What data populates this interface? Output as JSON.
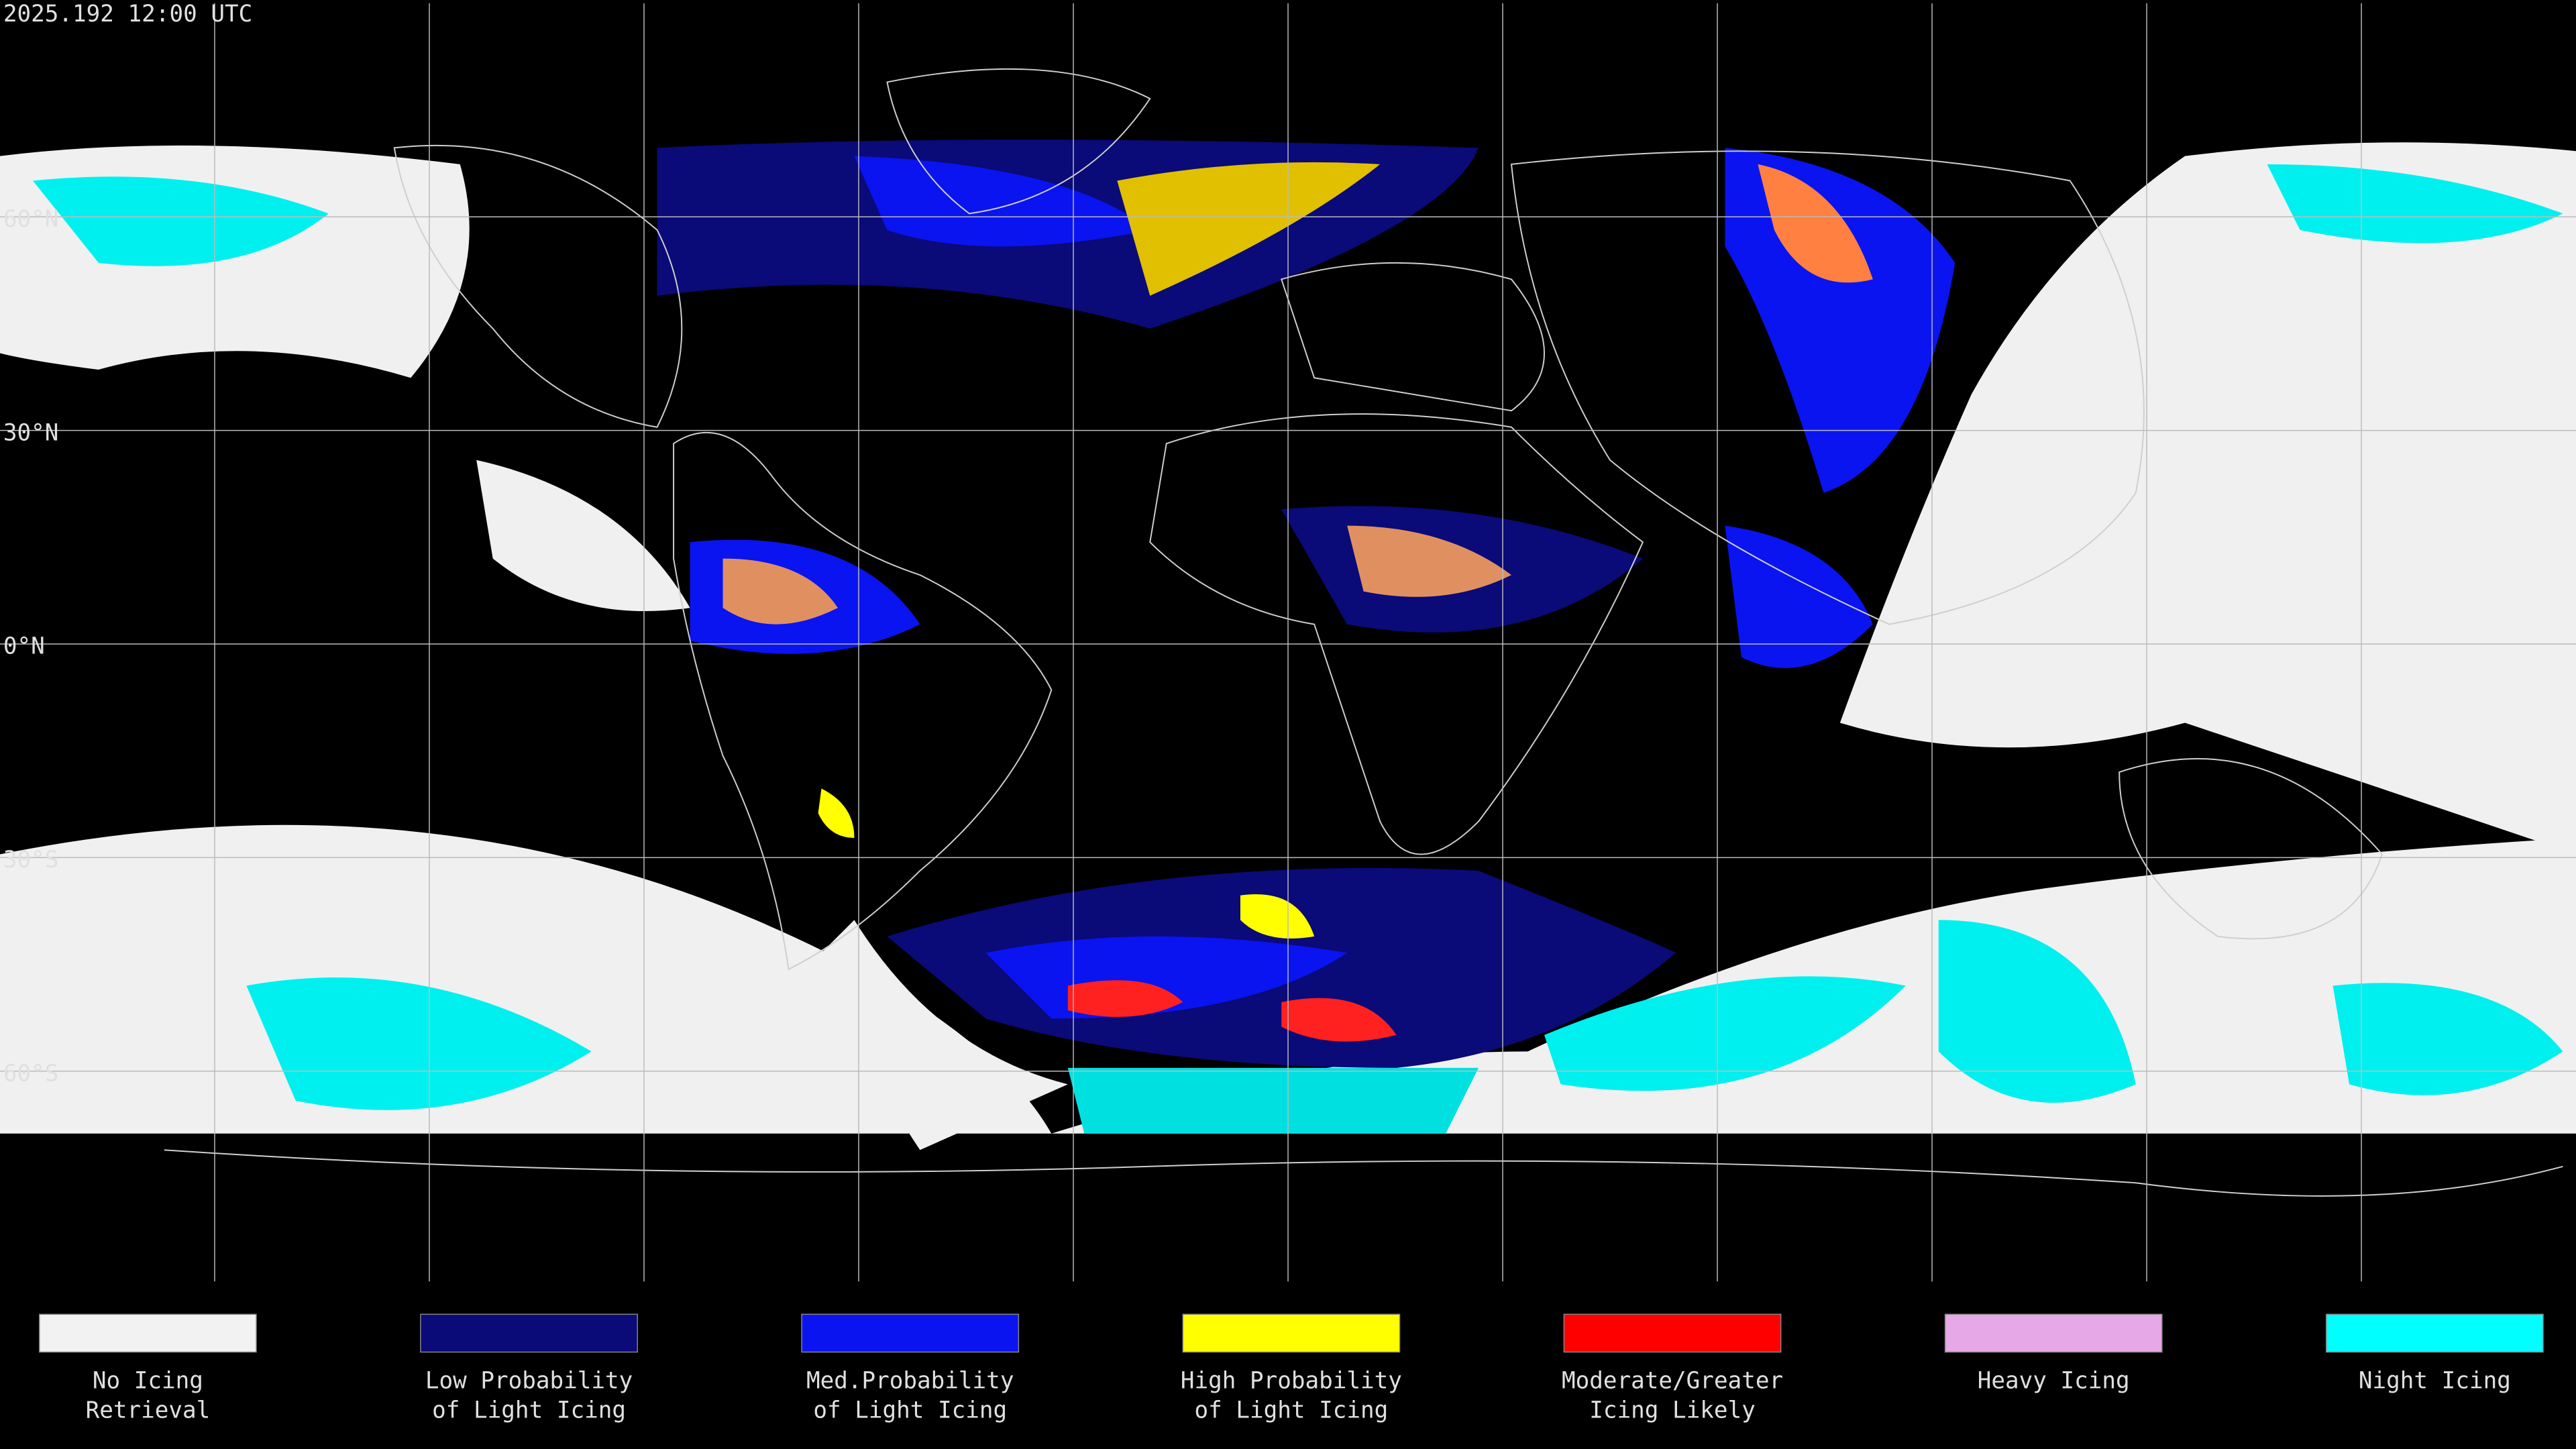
{
  "header": {
    "timestamp": "2025.192 12:00 UTC"
  },
  "map": {
    "latitude_labels": [
      "60°N",
      "30°N",
      "0°N",
      "30°S",
      "60°S"
    ]
  },
  "legend": {
    "items": [
      {
        "lines": [
          "No Icing",
          "Retrieval"
        ],
        "color": "#f2f2f2"
      },
      {
        "lines": [
          "Low Probability",
          "of Light Icing"
        ],
        "color": "#0a0a78"
      },
      {
        "lines": [
          "Med.Probability",
          "of Light Icing"
        ],
        "color": "#0a14f0"
      },
      {
        "lines": [
          "High Probability",
          "of Light Icing"
        ],
        "color": "#ffff00"
      },
      {
        "lines": [
          "Moderate/Greater",
          "Icing Likely"
        ],
        "color": "#ff0000"
      },
      {
        "lines": [
          "Heavy Icing"
        ],
        "color": "#e6a8e6"
      },
      {
        "lines": [
          "Night Icing"
        ],
        "color": "#00ffff"
      }
    ]
  }
}
